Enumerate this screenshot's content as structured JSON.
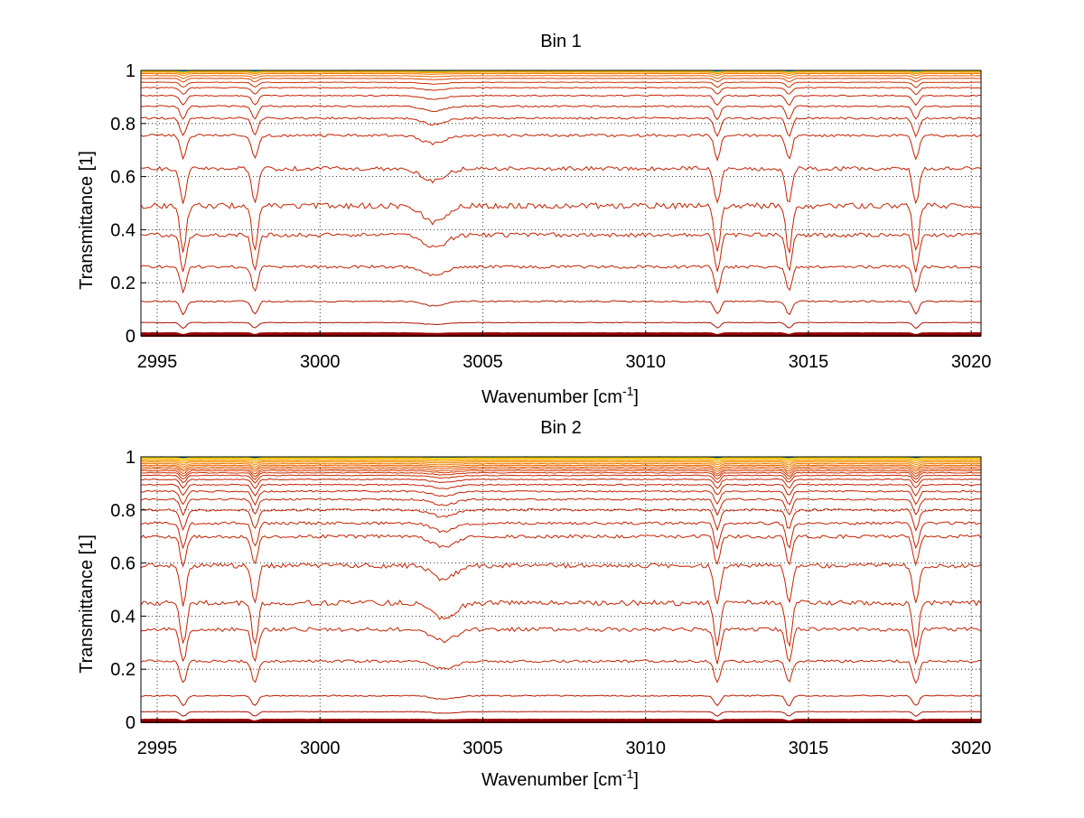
{
  "chart_data": [
    {
      "type": "line",
      "title": "Bin 1",
      "xlabel": "Wavenumber [cm",
      "xlabel_sup": "-1",
      "xlabel_close": "]",
      "ylabel": "Transmittance [1]",
      "xlim": [
        2994.5,
        3020.3
      ],
      "ylim": [
        0,
        1
      ],
      "grid": true,
      "xticks": [
        2995,
        3000,
        3005,
        3010,
        3015,
        3020
      ],
      "yticks": [
        0,
        0.2,
        0.4,
        0.6,
        0.8,
        1
      ],
      "ytick_labels": [
        "0",
        "0.2",
        "0.4",
        "0.6",
        "0.8",
        "1"
      ],
      "dip_positions": [
        2995.8,
        2998.0,
        3003.5,
        3012.2,
        3014.4,
        3018.3
      ],
      "series_baselines": [
        0.0,
        0.005,
        0.01,
        0.05,
        0.13,
        0.26,
        0.38,
        0.49,
        0.63,
        0.755,
        0.82,
        0.865,
        0.905,
        0.935,
        0.955,
        0.97,
        0.98,
        0.988,
        0.993,
        0.996,
        0.998,
        0.999,
        1.0
      ],
      "series_colors": [
        "#800000",
        "#8b0000",
        "#990000",
        "#aa1100",
        "#b81a00",
        "#c42200",
        "#c42200",
        "#c42200",
        "#c42200",
        "#c42200",
        "#c42200",
        "#c42200",
        "#c42200",
        "#c82800",
        "#cc3000",
        "#d84000",
        "#e86000",
        "#ee7a00",
        "#f59000",
        "#ffaa00",
        "#ffcc00",
        "#c8e000",
        "#00a0e0"
      ]
    },
    {
      "type": "line",
      "title": "Bin 2",
      "xlabel": "Wavenumber [cm",
      "xlabel_sup": "-1",
      "xlabel_close": "]",
      "ylabel": "Transmittance [1]",
      "xlim": [
        2994.5,
        3020.3
      ],
      "ylim": [
        0,
        1
      ],
      "grid": true,
      "xticks": [
        2995,
        3000,
        3005,
        3010,
        3015,
        3020
      ],
      "yticks": [
        0,
        0.2,
        0.4,
        0.6,
        0.8,
        1
      ],
      "ytick_labels": [
        "0",
        "0.2",
        "0.4",
        "0.6",
        "0.8",
        "1"
      ],
      "dip_positions": [
        2995.8,
        2998.0,
        3003.8,
        3012.2,
        3014.4,
        3018.3
      ],
      "series_baselines": [
        0.0,
        0.005,
        0.01,
        0.04,
        0.1,
        0.23,
        0.35,
        0.45,
        0.59,
        0.7,
        0.75,
        0.8,
        0.84,
        0.87,
        0.895,
        0.915,
        0.93,
        0.94,
        0.948,
        0.955,
        0.962,
        0.968,
        0.974,
        0.98,
        0.985,
        0.99,
        0.994,
        0.997,
        0.999,
        1.0
      ],
      "series_colors": [
        "#800000",
        "#8b0000",
        "#990000",
        "#aa1100",
        "#b81a00",
        "#c42200",
        "#c42200",
        "#c42200",
        "#c42200",
        "#c42200",
        "#c42200",
        "#c42200",
        "#c42200",
        "#c42200",
        "#c42200",
        "#c42200",
        "#c82800",
        "#cc3000",
        "#d43800",
        "#dc4a00",
        "#e45a00",
        "#ea6a00",
        "#ef7a00",
        "#f28800",
        "#f59600",
        "#f8a800",
        "#fbc000",
        "#ffd800",
        "#c8e000",
        "#0060c0"
      ]
    }
  ]
}
